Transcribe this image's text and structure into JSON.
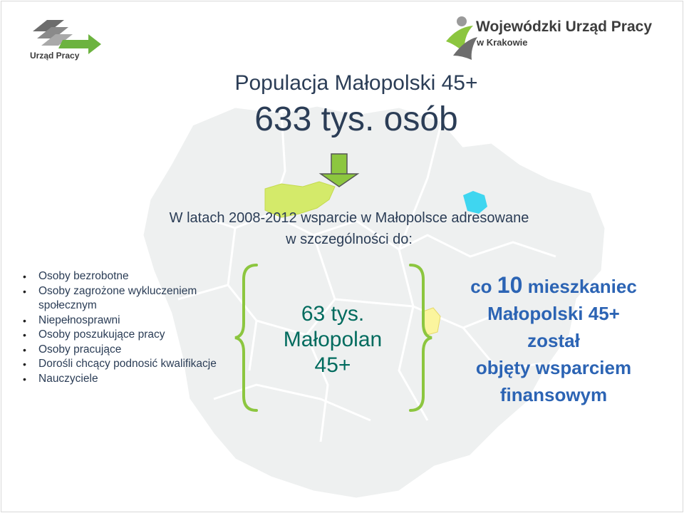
{
  "logos": {
    "left_text": "Urząd Pracy",
    "right_title": "Wojewódzki Urząd Pracy",
    "right_subtitle": "w Krakowie"
  },
  "heading": {
    "title": "Populacja Małopolski 45+",
    "population": "633 tys. osób"
  },
  "support_text": {
    "line1": "W latach 2008-2012 wsparcie w Małopolsce adresowane",
    "line2": "w szczególności do:"
  },
  "target_groups": [
    "Osoby bezrobotne",
    "Osoby zagrożone wykluczeniem społecznym",
    "Niepełnosprawni",
    "Osoby poszukujące pracy",
    "Osoby pracujące",
    "Dorośli chcący podnosić kwalifikacje",
    "Nauczyciele"
  ],
  "beneficiaries": {
    "line1": "63 tys.",
    "line2": "Małopolan",
    "line3": "45+"
  },
  "result": {
    "prefix": "co",
    "number": "10",
    "line1_rest": "mieszkaniec",
    "line2": "Małopolski 45+",
    "line3": "został",
    "line4": "objęty wsparciem",
    "line5": "finansowym"
  },
  "colors": {
    "heading": "#2b3d56",
    "count": "#006b5e",
    "result": "#2c64b4",
    "brace": "#8cc63f",
    "arrow": "#8cc63f",
    "map_fill": "#eef0f0",
    "highlight_region": "#d4ea6a"
  },
  "icons": [
    "down-arrow-icon",
    "map-region-icon"
  ]
}
